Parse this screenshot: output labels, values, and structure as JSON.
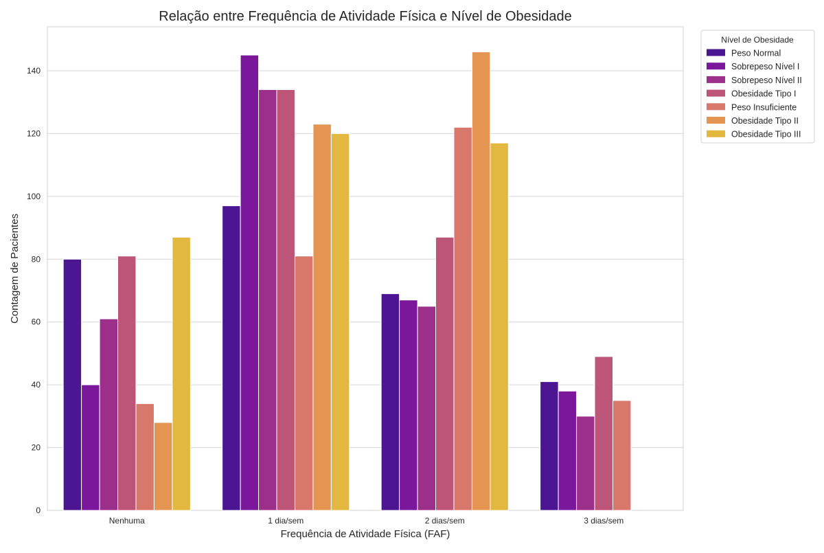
{
  "chart_data": {
    "type": "bar",
    "title": "Relação entre Frequência de Atividade Física e Nível de Obesidade",
    "xlabel": "Frequência de Atividade Física (FAF)",
    "ylabel": "Contagem de Pacientes",
    "categories": [
      "Nenhuma",
      "1 dia/sem",
      "2 dias/sem",
      "3 dias/sem"
    ],
    "ylim": [
      0,
      154
    ],
    "yticks": [
      0,
      20,
      40,
      60,
      80,
      100,
      120,
      140
    ],
    "grid": true,
    "legend": {
      "title": "Nível de Obesidade",
      "placement": "outside-top-right"
    },
    "series": [
      {
        "name": "Peso Normal",
        "color": "#4c1591",
        "values": [
          80,
          97,
          69,
          41
        ]
      },
      {
        "name": "Sobrepeso Nível I",
        "color": "#7a179a",
        "values": [
          40,
          145,
          67,
          38
        ]
      },
      {
        "name": "Sobrepeso Nível II",
        "color": "#9b2f8a",
        "values": [
          61,
          134,
          65,
          30
        ]
      },
      {
        "name": "Obesidade Tipo I",
        "color": "#bc5577",
        "values": [
          81,
          134,
          87,
          49
        ]
      },
      {
        "name": "Peso Insuficiente",
        "color": "#d7786b",
        "values": [
          34,
          81,
          122,
          35
        ]
      },
      {
        "name": "Obesidade Tipo II",
        "color": "#e49552",
        "values": [
          28,
          123,
          146,
          0
        ]
      },
      {
        "name": "Obesidade Tipo III",
        "color": "#e3b840",
        "values": [
          87,
          120,
          117,
          0
        ]
      }
    ]
  }
}
